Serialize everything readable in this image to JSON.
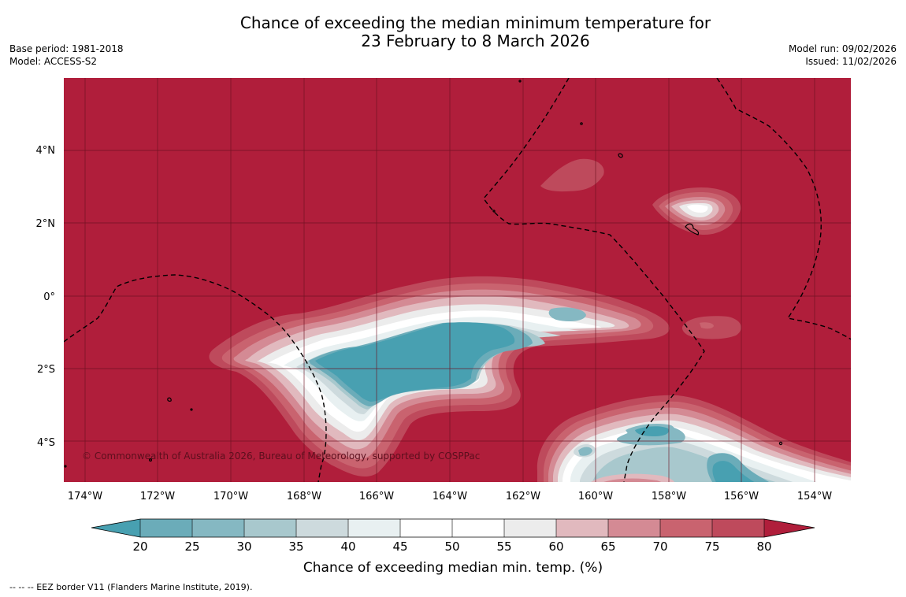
{
  "title_line1": "Chance of exceeding the median minimum temperature for",
  "title_line2": "23 February to 8 March 2026",
  "base_period": "Base period: 1981-2018",
  "model": "Model: ACCESS-S2",
  "model_run": "Model run: 09/02/2026",
  "issued": "Issued: 11/02/2026",
  "copyright": "© Commonwealth of Australia 2026, Bureau of Meteorology, supported by COSPPac",
  "footer": "--  --  -- EEZ border V11 (Flanders Marine Institute, 2019).",
  "colorbar_label": "Chance of exceeding median min. temp. (%)",
  "lat_labels": [
    "4°N",
    "2°N",
    "0°",
    "2°S",
    "4°S"
  ],
  "lon_labels": [
    "174°W",
    "172°W",
    "170°W",
    "168°W",
    "166°W",
    "164°W",
    "162°W",
    "160°W",
    "158°W",
    "156°W",
    "154°W"
  ],
  "colorbar_ticks": [
    "20",
    "25",
    "30",
    "35",
    "40",
    "45",
    "50",
    "55",
    "60",
    "65",
    "70",
    "75",
    "80"
  ],
  "colors": {
    "above_80": "#b01e3b",
    "c75_80": "#be4a5c",
    "c70_75": "#c9636f",
    "c65_70": "#d48a94",
    "c60_65": "#e1b9be",
    "c55_60": "#ececec",
    "c50_55": "#ffffff",
    "c45_50": "#ffffff",
    "c40_45": "#e8f0f1",
    "c35_40": "#cddadd",
    "c30_35": "#a8c8cd",
    "c25_30": "#85b8c2",
    "c20_25": "#6bacb9",
    "below_20": "#48a0b1"
  }
}
